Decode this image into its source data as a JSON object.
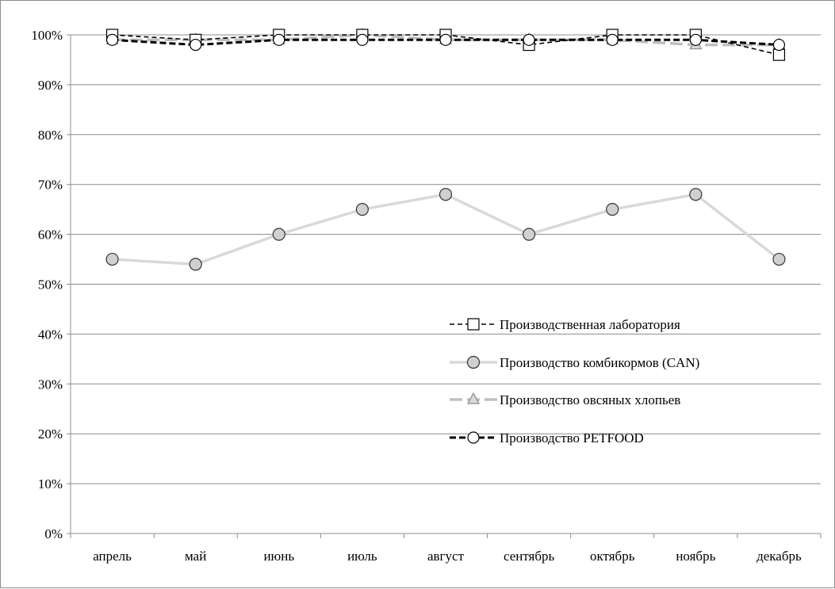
{
  "chart_data": {
    "type": "line",
    "title": "",
    "xlabel": "",
    "ylabel": "",
    "ylim": [
      0,
      100
    ],
    "yticks": [
      "0%",
      "10%",
      "20%",
      "30%",
      "40%",
      "50%",
      "60%",
      "70%",
      "80%",
      "90%",
      "100%"
    ],
    "grid": "horizontal",
    "legend_position": "center-right",
    "categories": [
      "апрель",
      "май",
      "июнь",
      "июль",
      "август",
      "сентябрь",
      "октябрь",
      "ноябрь",
      "декабрь"
    ],
    "series": [
      {
        "name": "Производственная лаборатория",
        "values": [
          100,
          99,
          100,
          100,
          100,
          98,
          100,
          100,
          96
        ],
        "color": "#000000",
        "line": "dashed-thin",
        "marker": "square-white"
      },
      {
        "name": "Производство комбикормов (CAN)",
        "values": [
          55,
          54,
          60,
          65,
          68,
          60,
          65,
          68,
          55
        ],
        "color": "#d9d9d9",
        "line": "solid",
        "marker": "circle-gray"
      },
      {
        "name": "Производство овсяных хлопьев",
        "values": [
          99,
          99,
          99,
          100,
          99,
          99,
          99,
          98,
          98
        ],
        "color": "#bfbfbf",
        "line": "dashed-gray",
        "marker": "triangle-gray"
      },
      {
        "name": "Производство PETFOOD",
        "values": [
          99,
          98,
          99,
          99,
          99,
          99,
          99,
          99,
          98
        ],
        "color": "#000000",
        "line": "dashed-thick",
        "marker": "circle-white"
      }
    ]
  }
}
